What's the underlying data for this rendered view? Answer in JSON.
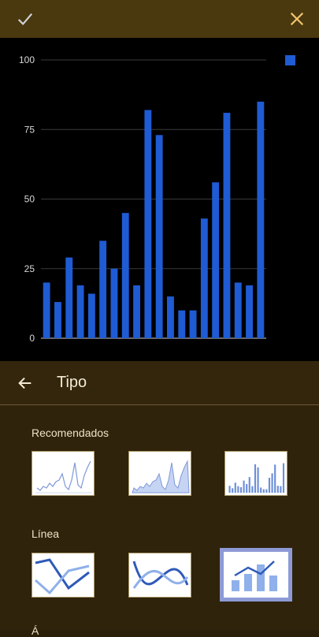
{
  "toolbar": {
    "confirm_icon": "check-icon",
    "close_icon": "close-icon"
  },
  "chart_data": {
    "type": "bar",
    "title": "",
    "xlabel": "",
    "ylabel": "",
    "ylim": [
      0,
      100
    ],
    "yticks": [
      0,
      25,
      50,
      75,
      100
    ],
    "grid": true,
    "legend": "top-right",
    "series": [
      {
        "color": "#1f5bd3",
        "values": [
          20,
          13,
          29,
          19,
          16,
          35,
          25,
          45,
          19,
          82,
          73,
          15,
          10,
          10,
          43,
          56,
          81,
          20,
          19,
          85
        ]
      }
    ]
  },
  "panel": {
    "back_icon": "arrow-left-icon",
    "title": "Tipo",
    "sections": [
      {
        "title": "Recomendados",
        "items": [
          "line-chart-thumb",
          "area-chart-thumb",
          "column-chart-thumb"
        ]
      },
      {
        "title": "Línea",
        "items": [
          "line-chart-thumb",
          "smooth-line-chart-thumb",
          "combo-chart-thumb"
        ]
      }
    ],
    "next_section_partial": "Á"
  },
  "colors": {
    "bar": "#1f5bd3",
    "accent": "#f0c36d",
    "selected_border": "#8d9ad6"
  }
}
